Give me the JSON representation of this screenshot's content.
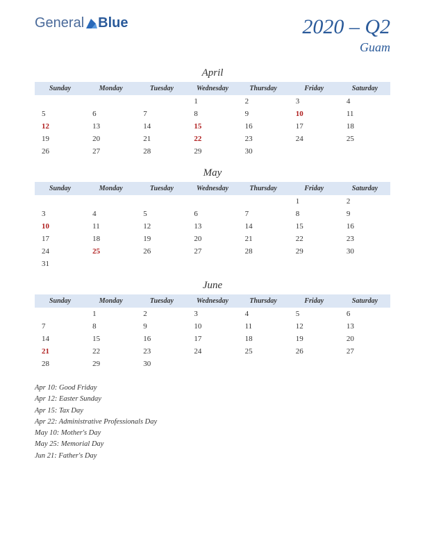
{
  "brand": {
    "part1": "General",
    "part2": "Blue"
  },
  "title": "2020 – Q2",
  "region": "Guam",
  "colors": {
    "header_bg": "#dce6f4",
    "accent": "#2a5a9a",
    "holiday": "#b02020",
    "text": "#333333",
    "background": "#ffffff"
  },
  "day_headers": [
    "Sunday",
    "Monday",
    "Tuesday",
    "Wednesday",
    "Thursday",
    "Friday",
    "Saturday"
  ],
  "months": [
    {
      "name": "April",
      "weeks": [
        [
          null,
          null,
          null,
          {
            "d": "1"
          },
          {
            "d": "2"
          },
          {
            "d": "3"
          },
          {
            "d": "4"
          }
        ],
        [
          {
            "d": "5"
          },
          {
            "d": "6"
          },
          {
            "d": "7"
          },
          {
            "d": "8"
          },
          {
            "d": "9"
          },
          {
            "d": "10",
            "h": true
          },
          {
            "d": "11"
          }
        ],
        [
          {
            "d": "12",
            "h": true
          },
          {
            "d": "13"
          },
          {
            "d": "14"
          },
          {
            "d": "15",
            "h": true
          },
          {
            "d": "16"
          },
          {
            "d": "17"
          },
          {
            "d": "18"
          }
        ],
        [
          {
            "d": "19"
          },
          {
            "d": "20"
          },
          {
            "d": "21"
          },
          {
            "d": "22",
            "h": true
          },
          {
            "d": "23"
          },
          {
            "d": "24"
          },
          {
            "d": "25"
          }
        ],
        [
          {
            "d": "26"
          },
          {
            "d": "27"
          },
          {
            "d": "28"
          },
          {
            "d": "29"
          },
          {
            "d": "30"
          },
          null,
          null
        ]
      ]
    },
    {
      "name": "May",
      "weeks": [
        [
          null,
          null,
          null,
          null,
          null,
          {
            "d": "1"
          },
          {
            "d": "2"
          }
        ],
        [
          {
            "d": "3"
          },
          {
            "d": "4"
          },
          {
            "d": "5"
          },
          {
            "d": "6"
          },
          {
            "d": "7"
          },
          {
            "d": "8"
          },
          {
            "d": "9"
          }
        ],
        [
          {
            "d": "10",
            "h": true
          },
          {
            "d": "11"
          },
          {
            "d": "12"
          },
          {
            "d": "13"
          },
          {
            "d": "14"
          },
          {
            "d": "15"
          },
          {
            "d": "16"
          }
        ],
        [
          {
            "d": "17"
          },
          {
            "d": "18"
          },
          {
            "d": "19"
          },
          {
            "d": "20"
          },
          {
            "d": "21"
          },
          {
            "d": "22"
          },
          {
            "d": "23"
          }
        ],
        [
          {
            "d": "24"
          },
          {
            "d": "25",
            "h": true
          },
          {
            "d": "26"
          },
          {
            "d": "27"
          },
          {
            "d": "28"
          },
          {
            "d": "29"
          },
          {
            "d": "30"
          }
        ],
        [
          {
            "d": "31"
          },
          null,
          null,
          null,
          null,
          null,
          null
        ]
      ]
    },
    {
      "name": "June",
      "weeks": [
        [
          null,
          {
            "d": "1"
          },
          {
            "d": "2"
          },
          {
            "d": "3"
          },
          {
            "d": "4"
          },
          {
            "d": "5"
          },
          {
            "d": "6"
          }
        ],
        [
          {
            "d": "7"
          },
          {
            "d": "8"
          },
          {
            "d": "9"
          },
          {
            "d": "10"
          },
          {
            "d": "11"
          },
          {
            "d": "12"
          },
          {
            "d": "13"
          }
        ],
        [
          {
            "d": "14"
          },
          {
            "d": "15"
          },
          {
            "d": "16"
          },
          {
            "d": "17"
          },
          {
            "d": "18"
          },
          {
            "d": "19"
          },
          {
            "d": "20"
          }
        ],
        [
          {
            "d": "21",
            "h": true
          },
          {
            "d": "22"
          },
          {
            "d": "23"
          },
          {
            "d": "24"
          },
          {
            "d": "25"
          },
          {
            "d": "26"
          },
          {
            "d": "27"
          }
        ],
        [
          {
            "d": "28"
          },
          {
            "d": "29"
          },
          {
            "d": "30"
          },
          null,
          null,
          null,
          null
        ]
      ]
    }
  ],
  "holiday_list": [
    "Apr 10: Good Friday",
    "Apr 12: Easter Sunday",
    "Apr 15: Tax Day",
    "Apr 22: Administrative Professionals Day",
    "May 10: Mother's Day",
    "May 25: Memorial Day",
    "Jun 21: Father's Day"
  ]
}
